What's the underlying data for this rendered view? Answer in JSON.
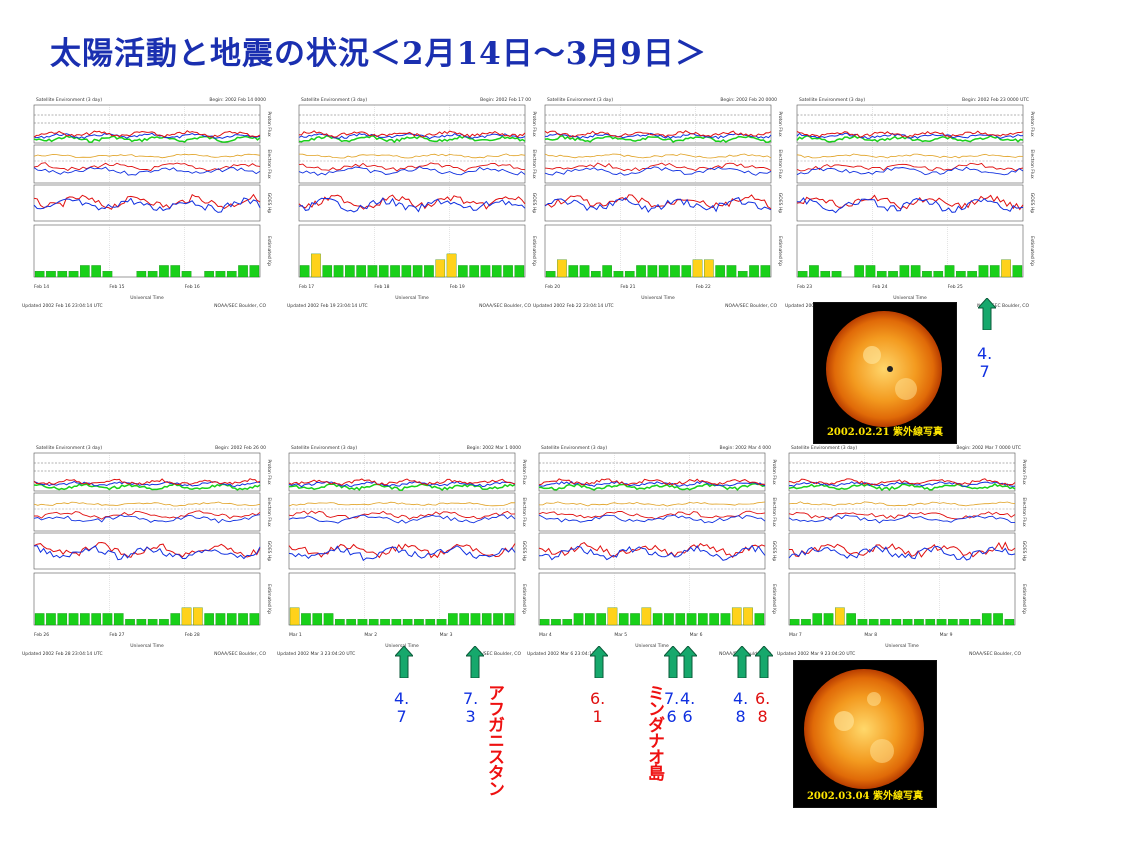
{
  "title": "太陽活動と地震の状況＜2月14日～3月9日＞",
  "colors": {
    "title": "#1a2fb0",
    "red": "#e01010",
    "blue": "#1030e0",
    "green": "#19d019",
    "yellow": "#ffd21a",
    "arrow": "#16a86c"
  },
  "chart_data": {
    "type": "line",
    "panels": [
      {
        "header_left": "Satellite Environment (3 day)",
        "header_right": "Begin: 2002 Feb 14 0000",
        "footer_left": "Updated 2002 Feb 16 23:04:14 UTC",
        "footer_right": "NOAA/SEC Boulder, CO",
        "x_ticks": [
          "Feb 14",
          "Feb 15",
          "Feb 16"
        ],
        "x_label": "Universal Time",
        "kp": [
          1,
          1,
          1,
          1,
          2,
          2,
          1,
          0,
          0,
          1,
          1,
          2,
          2,
          1,
          0,
          1,
          1,
          1,
          2,
          2
        ]
      },
      {
        "header_left": "Satellite Environment (3 day)",
        "header_right": "Begin: 2002 Feb 17 00",
        "footer_left": "Updated 2002 Feb 19 23:04:14 UTC",
        "footer_right": "NOAA/SEC Boulder, CO",
        "x_ticks": [
          "Feb 17",
          "Feb 18",
          "Feb 19"
        ],
        "x_label": "Universal Time",
        "kp": [
          2,
          4,
          2,
          2,
          2,
          2,
          2,
          2,
          2,
          2,
          2,
          2,
          3,
          4,
          2,
          2,
          2,
          2,
          2,
          2
        ]
      },
      {
        "header_left": "Satellite Environment (3 day)",
        "header_right": "Begin: 2002 Feb 20 0000",
        "footer_left": "Updated 2002 Feb 22 23:04:14 UTC",
        "footer_right": "NOAA/SEC Boulder, CO",
        "x_ticks": [
          "Feb 20",
          "Feb 21",
          "Feb 22"
        ],
        "x_label": "Universal Time",
        "kp": [
          1,
          3,
          2,
          2,
          1,
          2,
          1,
          1,
          2,
          2,
          2,
          2,
          2,
          3,
          3,
          2,
          2,
          1,
          2,
          2
        ]
      },
      {
        "header_left": "Satellite Environment (3 day)",
        "header_right": "Begin: 2002 Feb 23 0000 UTC",
        "footer_left": "Updated 2002 Feb 25 23:04:13 UTC",
        "footer_right": "NOAA/SEC Boulder, CO",
        "x_ticks": [
          "Feb 23",
          "Feb 24",
          "Feb 25"
        ],
        "x_label": "Universal Time",
        "kp": [
          1,
          2,
          1,
          1,
          0,
          2,
          2,
          1,
          1,
          2,
          2,
          1,
          1,
          2,
          1,
          1,
          2,
          2,
          3,
          2
        ]
      },
      {
        "header_left": "Satellite Environment (3 day)",
        "header_right": "Begin: 2002 Feb 26 00",
        "footer_left": "Updated 2002 Feb 28 23:04:14 UTC",
        "footer_right": "NOAA/SEC Boulder, CO",
        "x_ticks": [
          "Feb 26",
          "Feb 27",
          "Feb 28"
        ],
        "x_label": "Universal Time",
        "kp": [
          2,
          2,
          2,
          2,
          2,
          2,
          2,
          2,
          1,
          1,
          1,
          1,
          2,
          3,
          3,
          2,
          2,
          2,
          2,
          2
        ]
      },
      {
        "header_left": "Satellite Environment (3 day)",
        "header_right": "Begin: 2002 Mar 1 0000",
        "footer_left": "Updated 2002 Mar 3 23:04:20 UTC",
        "footer_right": "NOAA/SEC Boulder, CO",
        "x_ticks": [
          "Mar 1",
          "Mar 2",
          "Mar 3"
        ],
        "x_label": "Universal Time",
        "kp": [
          3,
          2,
          2,
          2,
          1,
          1,
          1,
          1,
          1,
          1,
          1,
          1,
          1,
          1,
          2,
          2,
          2,
          2,
          2,
          2
        ]
      },
      {
        "header_left": "Satellite Environment (3 day)",
        "header_right": "Begin: 2002 Mar 4 000",
        "footer_left": "Updated 2002 Mar 6 23:04:13 UTC",
        "footer_right": "NOAA/SEC Boulder, CO",
        "x_ticks": [
          "Mar 4",
          "Mar 5",
          "Mar 6"
        ],
        "x_label": "Universal Time",
        "kp": [
          1,
          1,
          1,
          2,
          2,
          2,
          3,
          2,
          2,
          3,
          2,
          2,
          2,
          2,
          2,
          2,
          2,
          3,
          3,
          2
        ]
      },
      {
        "header_left": "Satellite Environment (3 day)",
        "header_right": "Begin: 2002 Mar 7 0000 UTC",
        "footer_left": "Updated 2002 Mar 9 23:04:20 UTC",
        "footer_right": "NOAA/SEC Boulder, CO",
        "x_ticks": [
          "Mar 7",
          "Mar 8",
          "Mar 9"
        ],
        "x_label": "Universal Time",
        "kp": [
          1,
          1,
          2,
          2,
          3,
          2,
          1,
          1,
          1,
          1,
          1,
          1,
          1,
          1,
          1,
          1,
          1,
          2,
          2,
          1
        ]
      }
    ],
    "side_labels": [
      "Proton Flux",
      "Electron Flux",
      "GOES Hp",
      "Estimated Kp"
    ]
  },
  "sun_images": [
    {
      "caption": "2002.02.21 紫外線写真"
    },
    {
      "caption": "2002.03.04 紫外線写真"
    }
  ],
  "earthquakes": [
    {
      "mag_top": "4.",
      "mag_bottom": "7",
      "color": "#1030e0"
    },
    {
      "mag_top": "4.",
      "mag_bottom": "7",
      "color": "#1030e0"
    },
    {
      "mag_top": "7.",
      "mag_bottom": "3",
      "color": "#1030e0",
      "label": "アフガニスタン"
    },
    {
      "mag_top": "6.",
      "mag_bottom": "1",
      "color": "#e01010"
    },
    {
      "mag_top": "7.",
      "mag_bottom": "6",
      "color": "#1030e0",
      "label": "ミンダナオ島"
    },
    {
      "mag_top": "4.",
      "mag_bottom": "6",
      "color": "#1030e0"
    },
    {
      "mag_top": "4.",
      "mag_bottom": "8",
      "color": "#1030e0"
    },
    {
      "mag_top": "6.",
      "mag_bottom": "8",
      "color": "#e01010"
    }
  ]
}
